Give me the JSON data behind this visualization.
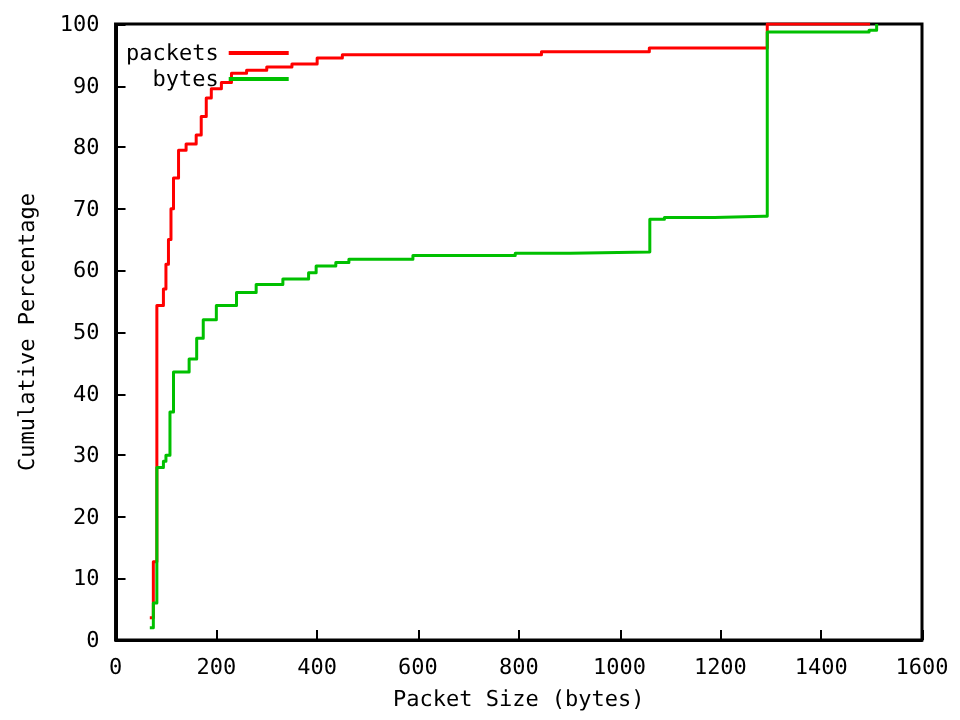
{
  "chart_data": {
    "type": "step",
    "xlabel": "Packet Size (bytes)",
    "ylabel": "Cumulative Percentage",
    "xlim": [
      0,
      1600
    ],
    "xticks": [
      0,
      200,
      400,
      600,
      800,
      1000,
      1200,
      1400,
      1600
    ],
    "ylim": [
      0,
      100
    ],
    "yticks": [
      0,
      10,
      20,
      30,
      40,
      50,
      60,
      70,
      80,
      90,
      100
    ],
    "grid": false,
    "legend": "top left",
    "marker": "none",
    "line_style": "solid",
    "series": [
      {
        "name": "packets",
        "color": "#ff0000",
        "x": [
          68,
          75,
          82,
          95,
          100,
          105,
          110,
          115,
          125,
          140,
          160,
          170,
          180,
          190,
          210,
          230,
          260,
          300,
          350,
          400,
          450,
          845,
          1059,
          1293,
          1497
        ],
        "values": [
          3.6,
          12.7,
          54.3,
          57,
          61,
          65,
          70,
          75,
          79.5,
          80.5,
          82,
          85,
          88,
          89.5,
          90.5,
          92,
          92.5,
          93,
          93.5,
          94.5,
          95,
          95.5,
          96.1,
          100,
          100
        ]
      },
      {
        "name": "bytes",
        "color": "#00c000",
        "x": [
          68,
          75,
          82,
          95,
          100,
          108,
          115,
          146,
          161,
          174,
          200,
          240,
          279,
          332,
          383,
          398,
          437,
          463,
          590,
          793,
          902,
          1060,
          1089,
          1188,
          1293,
          1495,
          1510
        ],
        "values": [
          2,
          6,
          28,
          29,
          30,
          37,
          43.5,
          45.6,
          49,
          52,
          54.3,
          56.4,
          57.7,
          58.6,
          59.6,
          60.7,
          61.3,
          61.8,
          62.4,
          62.8,
          63,
          68.3,
          68.6,
          68.8,
          98.7,
          99,
          100
        ]
      }
    ]
  }
}
